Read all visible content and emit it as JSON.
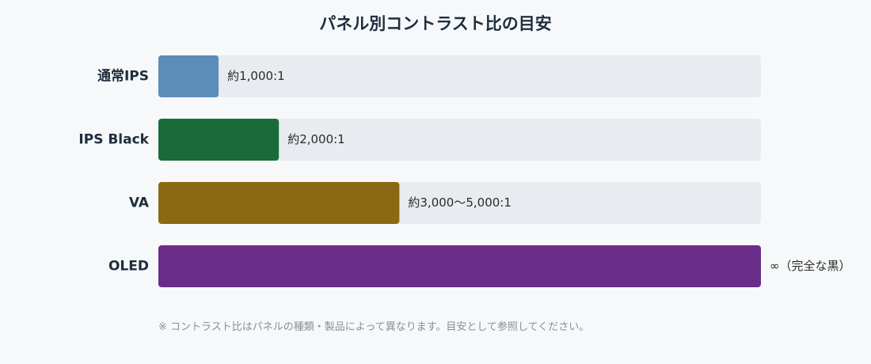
{
  "chart_data": {
    "type": "bar",
    "orientation": "horizontal",
    "title": "パネル別コントラスト比の目安",
    "categories": [
      "通常IPS",
      "IPS Black",
      "VA",
      "OLED"
    ],
    "values": [
      1000,
      2000,
      4000,
      10000
    ],
    "value_labels": [
      "約1,000:1",
      "約2,000:1",
      "約3,000〜5,000:1",
      "∞（完全な黒）"
    ],
    "colors": [
      "#5b8db8",
      "#1b6b3a",
      "#8b6914",
      "#6a2d8a"
    ],
    "track_color": "#e8ebef",
    "xlabel": "",
    "ylabel": "",
    "xlim": [
      0,
      10000
    ],
    "grid": false,
    "footnote": "※ コントラスト比はパネルの種類・製品によって異なります。目安として参照してください。"
  }
}
